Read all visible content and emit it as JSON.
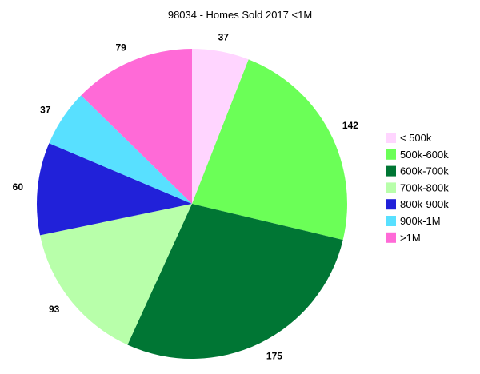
{
  "chart_data": {
    "type": "pie",
    "title": "98034 - Homes Sold 2017 <1M",
    "categories": [
      "< 500k",
      "500k-600k",
      "600k-700k",
      "700k-800k",
      "800k-900k",
      "900k-1M",
      ">1M"
    ],
    "values": [
      37,
      142,
      175,
      93,
      60,
      37,
      79
    ],
    "colors": [
      "#ffd5ff",
      "#6bff57",
      "#007634",
      "#b8ffaa",
      "#2121d9",
      "#58e0ff",
      "#ff6ad7"
    ],
    "start_angle_deg": 0,
    "direction": "clockwise",
    "legend_position": "right",
    "data_labels": true
  }
}
